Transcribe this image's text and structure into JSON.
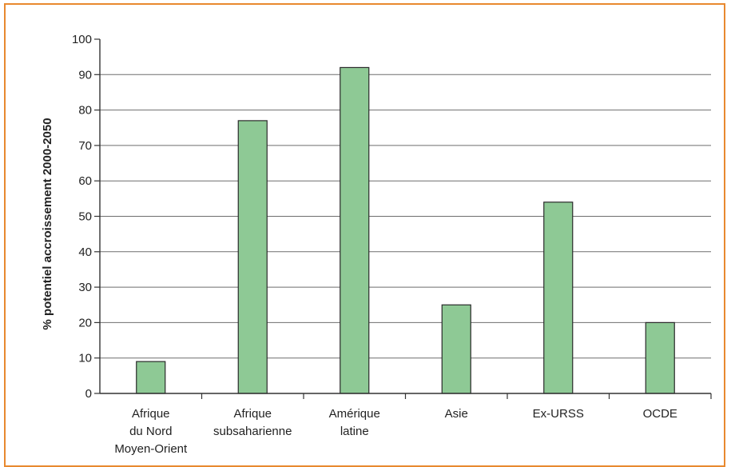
{
  "colors": {
    "frame": "#e8892f",
    "bar": "#8ec995",
    "bar_stroke": "#2a2a2a",
    "grid": "#6e6e6e",
    "axis": "#333333"
  },
  "chart_data": {
    "type": "bar",
    "ylabel": "% potentiel accroissement 2000-2050",
    "xlabel": "",
    "ylim": [
      0,
      100
    ],
    "yticks": [
      0,
      10,
      20,
      30,
      40,
      50,
      60,
      70,
      80,
      90,
      100
    ],
    "grid": true,
    "categories": [
      [
        "Afrique",
        "du Nord",
        "Moyen-Orient"
      ],
      [
        "Afrique",
        "subsaharienne"
      ],
      [
        "Amérique",
        "latine"
      ],
      [
        "Asie"
      ],
      [
        "Ex-URSS"
      ],
      [
        "OCDE"
      ]
    ],
    "values": [
      9,
      77,
      92,
      25,
      54,
      20
    ]
  }
}
